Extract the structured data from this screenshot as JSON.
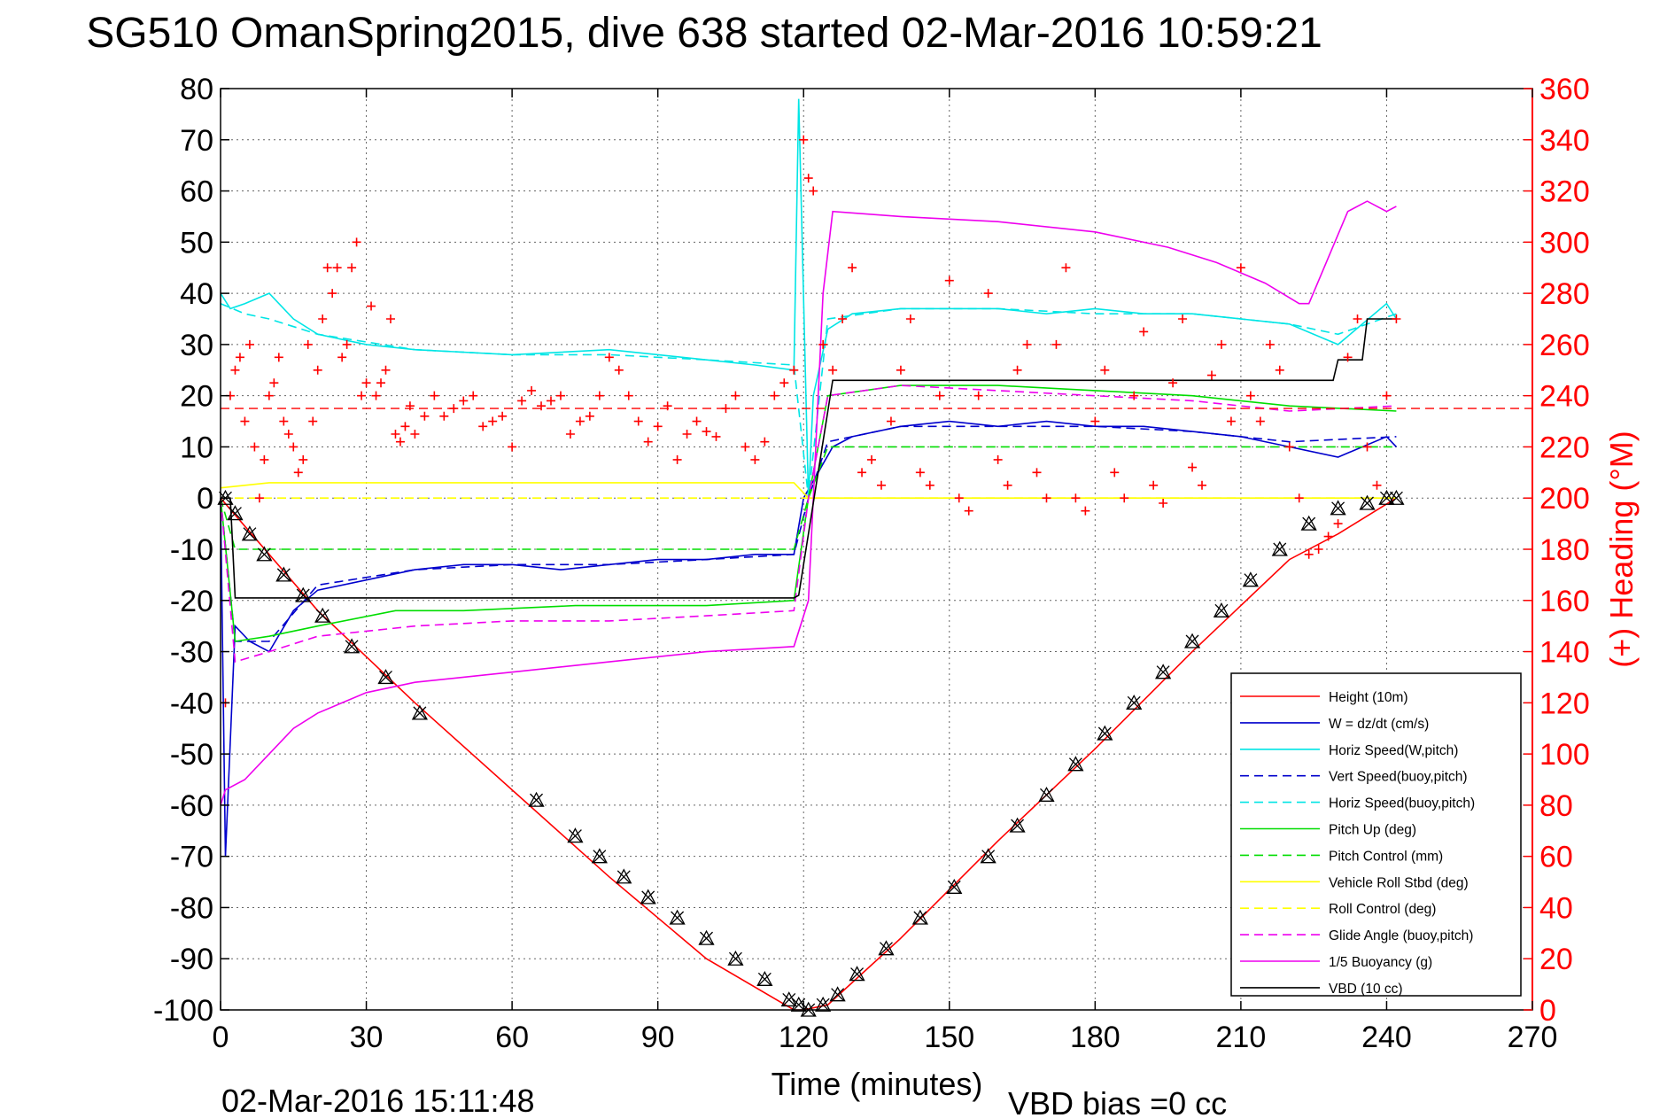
{
  "chart_data": {
    "type": "line",
    "title": "SG510 OmanSpring2015, dive 638 started 02-Mar-2016 10:59:21",
    "xlabel": "Time (minutes)",
    "ylabel": "",
    "ylabel_right": "(+) Heading (°M)",
    "xlim": [
      0,
      270
    ],
    "ylim": [
      -100,
      80
    ],
    "ylim_right": [
      0,
      360
    ],
    "x_ticks": [
      "0",
      "30",
      "60",
      "90",
      "120",
      "150",
      "180",
      "210",
      "240",
      "270"
    ],
    "y_ticks": [
      "-100",
      "-90",
      "-80",
      "-70",
      "-60",
      "-50",
      "-40",
      "-30",
      "-20",
      "-10",
      "0",
      "10",
      "20",
      "30",
      "40",
      "50",
      "60",
      "70",
      "80"
    ],
    "y_ticks_right": [
      "0",
      "20",
      "40",
      "60",
      "80",
      "100",
      "120",
      "140",
      "160",
      "180",
      "200",
      "220",
      "240",
      "260",
      "280",
      "300",
      "320",
      "340",
      "360"
    ],
    "grid": true,
    "legend_position": "bottom-right",
    "footer_left": "02-Mar-2016 15:11:48",
    "footer_right": "VBD bias =0 cc",
    "colors": {
      "red": "#ff0000",
      "blue": "#0000cc",
      "cyan": "#00e5e5",
      "green": "#00dd00",
      "yellow": "#ffff00",
      "magenta": "#ee00ee",
      "black": "#000000"
    },
    "series": [
      {
        "name": "Height (10m)",
        "color": "#ff0000",
        "dash": "solid",
        "x": [
          0,
          20,
          40,
          60,
          80,
          100,
          118,
          120,
          125,
          140,
          160,
          180,
          200,
          220,
          230,
          242
        ],
        "y": [
          0,
          -22,
          -40,
          -57,
          -74,
          -90,
          -100,
          -100,
          -99,
          -86,
          -67,
          -49,
          -30,
          -12,
          -7,
          0
        ]
      },
      {
        "name": "W = dz/dt (cm/s)",
        "color": "#0000cc",
        "dash": "solid",
        "x": [
          0,
          1,
          3,
          6,
          10,
          15,
          20,
          30,
          40,
          50,
          60,
          70,
          80,
          90,
          100,
          110,
          118,
          120,
          123,
          126,
          130,
          140,
          150,
          160,
          170,
          180,
          190,
          200,
          210,
          220,
          230,
          240,
          242
        ],
        "y": [
          0,
          -70,
          -25,
          -28,
          -30,
          -22,
          -18,
          -16,
          -14,
          -13,
          -13,
          -14,
          -13,
          -12,
          -12,
          -11,
          -11,
          0,
          5,
          10,
          12,
          14,
          15,
          14,
          15,
          14,
          14,
          13,
          12,
          10,
          8,
          12,
          10
        ]
      },
      {
        "name": "Horiz Speed(W,pitch)",
        "color": "#00e5e5",
        "dash": "solid",
        "x": [
          0,
          2,
          5,
          10,
          15,
          20,
          30,
          40,
          60,
          80,
          100,
          110,
          118,
          119,
          121,
          122,
          125,
          130,
          140,
          150,
          160,
          170,
          180,
          190,
          200,
          210,
          220,
          230,
          240,
          242
        ],
        "y": [
          40,
          37,
          38,
          40,
          35,
          32,
          30,
          29,
          28,
          29,
          27,
          26,
          25,
          78,
          0,
          20,
          33,
          36,
          37,
          37,
          37,
          36,
          37,
          36,
          36,
          35,
          34,
          30,
          38,
          35
        ]
      },
      {
        "name": "Vert Speed(buoy,pitch)",
        "color": "#0000cc",
        "dash": "dashed",
        "x": [
          0,
          3,
          10,
          20,
          40,
          60,
          80,
          100,
          118,
          121,
          125,
          140,
          160,
          180,
          200,
          220,
          242
        ],
        "y": [
          0,
          -28,
          -28,
          -17,
          -14,
          -13,
          -13,
          -12,
          -11,
          0,
          11,
          14,
          14,
          14,
          13,
          11,
          12
        ]
      },
      {
        "name": "Horiz Speed(buoy,pitch)",
        "color": "#00e5e5",
        "dash": "dashed",
        "x": [
          0,
          5,
          10,
          20,
          40,
          60,
          80,
          100,
          118,
          121,
          125,
          140,
          160,
          180,
          200,
          220,
          230,
          242
        ],
        "y": [
          38,
          36,
          35,
          32,
          29,
          28,
          28,
          27,
          26,
          0,
          35,
          37,
          37,
          36,
          36,
          34,
          32,
          36
        ]
      },
      {
        "name": "Pitch Up (deg)",
        "color": "#00dd00",
        "dash": "solid",
        "x": [
          0,
          3,
          10,
          20,
          36,
          50,
          73,
          100,
          118,
          121,
          125,
          140,
          160,
          180,
          200,
          220,
          242
        ],
        "y": [
          0,
          -28,
          -27,
          -25,
          -22,
          -22,
          -21,
          -21,
          -20,
          0,
          20,
          22,
          22,
          21,
          20,
          18,
          17
        ]
      },
      {
        "name": "Pitch Control (mm)",
        "color": "#00dd00",
        "dash": "dashed",
        "x": [
          0,
          3,
          10,
          20,
          40,
          60,
          80,
          100,
          118,
          121,
          125,
          140,
          160,
          180,
          200,
          220,
          242
        ],
        "y": [
          0,
          -10,
          -10,
          -10,
          -10,
          -10,
          -10,
          -10,
          -10,
          0,
          10,
          10,
          10,
          10,
          10,
          10,
          10
        ]
      },
      {
        "name": "Vehicle Roll Stbd (deg)",
        "color": "#ffff00",
        "dash": "solid",
        "x": [
          0,
          10,
          30,
          50,
          70,
          90,
          110,
          118,
          121,
          125,
          140,
          160,
          180,
          200,
          220,
          242
        ],
        "y": [
          2,
          3,
          3,
          3,
          3,
          3,
          3,
          3,
          0,
          0,
          0,
          0,
          0,
          0,
          0,
          0
        ]
      },
      {
        "name": "Roll Control (deg)",
        "color": "#ffff00",
        "dash": "dashed",
        "x": [
          0,
          30,
          60,
          90,
          118,
          121,
          150,
          180,
          210,
          242
        ],
        "y": [
          0,
          0,
          0,
          0,
          0,
          0,
          0,
          0,
          0,
          0
        ]
      },
      {
        "name": "Glide Angle (buoy,pitch)",
        "color": "#ee00ee",
        "dash": "dashed",
        "x": [
          0,
          3,
          10,
          20,
          40,
          60,
          80,
          100,
          118,
          121,
          125,
          140,
          160,
          180,
          200,
          220,
          242
        ],
        "y": [
          0,
          -32,
          -30,
          -27,
          -25,
          -24,
          -24,
          -23,
          -22,
          0,
          20,
          22,
          21,
          20,
          19,
          17,
          18
        ]
      },
      {
        "name": "1/5 Buoyancy (g)",
        "color": "#ee00ee",
        "dash": "solid",
        "x": [
          0,
          1,
          5,
          10,
          15,
          20,
          30,
          40,
          50,
          60,
          80,
          100,
          118,
          121,
          124,
          126,
          140,
          160,
          180,
          195,
          205,
          215,
          222,
          224,
          232,
          236,
          240,
          242
        ],
        "y": [
          -60,
          -57,
          -55,
          -50,
          -45,
          -42,
          -38,
          -36,
          -35,
          -34,
          -32,
          -30,
          -29,
          -20,
          40,
          56,
          55,
          54,
          52,
          49,
          46,
          42,
          38,
          38,
          56,
          58,
          56,
          57
        ]
      },
      {
        "name": "VBD (10 cc)",
        "color": "#000000",
        "dash": "solid",
        "x": [
          0,
          2,
          3,
          118,
          119,
          126,
          127,
          229,
          230,
          235,
          236,
          242
        ],
        "y": [
          0,
          0,
          -19.5,
          -19.5,
          -19,
          23,
          23,
          23,
          27,
          27,
          35,
          35
        ]
      }
    ],
    "heading_constant": {
      "color": "#ff0000",
      "dash": "dashed",
      "value": 235
    },
    "heading_points": {
      "color": "#ff0000",
      "marker": "+",
      "x": [
        1,
        2,
        3,
        4,
        5,
        6,
        7,
        8,
        9,
        10,
        11,
        12,
        13,
        14,
        15,
        16,
        17,
        18,
        19,
        20,
        21,
        22,
        23,
        24,
        25,
        26,
        27,
        28,
        29,
        30,
        31,
        32,
        33,
        34,
        35,
        36,
        37,
        38,
        39,
        40,
        42,
        44,
        46,
        48,
        50,
        52,
        54,
        56,
        58,
        60,
        62,
        64,
        66,
        68,
        70,
        72,
        74,
        76,
        78,
        80,
        82,
        84,
        86,
        88,
        90,
        92,
        94,
        96,
        98,
        100,
        102,
        104,
        106,
        108,
        110,
        112,
        114,
        116,
        118,
        120,
        121,
        122,
        124,
        126,
        128,
        130,
        132,
        134,
        136,
        138,
        140,
        142,
        144,
        146,
        148,
        150,
        152,
        154,
        156,
        158,
        160,
        162,
        164,
        166,
        168,
        170,
        172,
        174,
        176,
        178,
        180,
        182,
        184,
        186,
        188,
        190,
        192,
        194,
        196,
        198,
        200,
        202,
        204,
        206,
        208,
        210,
        212,
        214,
        216,
        218,
        220,
        222,
        224,
        226,
        228,
        230,
        232,
        234,
        236,
        238,
        240,
        242
      ],
      "y": [
        120,
        240,
        250,
        255,
        230,
        260,
        220,
        200,
        215,
        240,
        245,
        255,
        230,
        225,
        220,
        210,
        215,
        260,
        230,
        250,
        270,
        290,
        280,
        290,
        255,
        260,
        290,
        300,
        240,
        245,
        275,
        240,
        245,
        250,
        270,
        225,
        222,
        228,
        236,
        225,
        232,
        240,
        232,
        235,
        238,
        240,
        228,
        230,
        232,
        220,
        238,
        242,
        236,
        238,
        240,
        225,
        230,
        232,
        240,
        255,
        250,
        240,
        230,
        222,
        228,
        236,
        215,
        225,
        230,
        226,
        224,
        235,
        240,
        220,
        215,
        222,
        240,
        245,
        250,
        340,
        325,
        320,
        260,
        250,
        270,
        290,
        210,
        215,
        205,
        230,
        250,
        270,
        210,
        205,
        240,
        285,
        200,
        195,
        240,
        280,
        215,
        205,
        250,
        260,
        210,
        200,
        260,
        290,
        200,
        195,
        230,
        250,
        210,
        200,
        240,
        265,
        205,
        198,
        245,
        270,
        212,
        205,
        248,
        260,
        230,
        290,
        240,
        230,
        260,
        250,
        220,
        200,
        178,
        180,
        185,
        190,
        255,
        270,
        220,
        205,
        240,
        270
      ]
    },
    "depth_markers": {
      "color": "#000000",
      "x": [
        1,
        3,
        6,
        9,
        13,
        17,
        21,
        27,
        34,
        41,
        65,
        73,
        78,
        83,
        88,
        94,
        100,
        106,
        112,
        117,
        119,
        121,
        124,
        127,
        131,
        137,
        144,
        151,
        158,
        164,
        170,
        176,
        182,
        188,
        194,
        200,
        206,
        212,
        218,
        224,
        230,
        236,
        240,
        242
      ],
      "y": [
        0,
        -3,
        -7,
        -11,
        -15,
        -19,
        -23,
        -29,
        -35,
        -42,
        -59,
        -66,
        -70,
        -74,
        -78,
        -82,
        -86,
        -90,
        -94,
        -98,
        -99,
        -100,
        -99,
        -97,
        -93,
        -88,
        -82,
        -76,
        -70,
        -64,
        -58,
        -52,
        -46,
        -40,
        -34,
        -28,
        -22,
        -16,
        -10,
        -5,
        -2,
        -1,
        0,
        0
      ]
    }
  }
}
